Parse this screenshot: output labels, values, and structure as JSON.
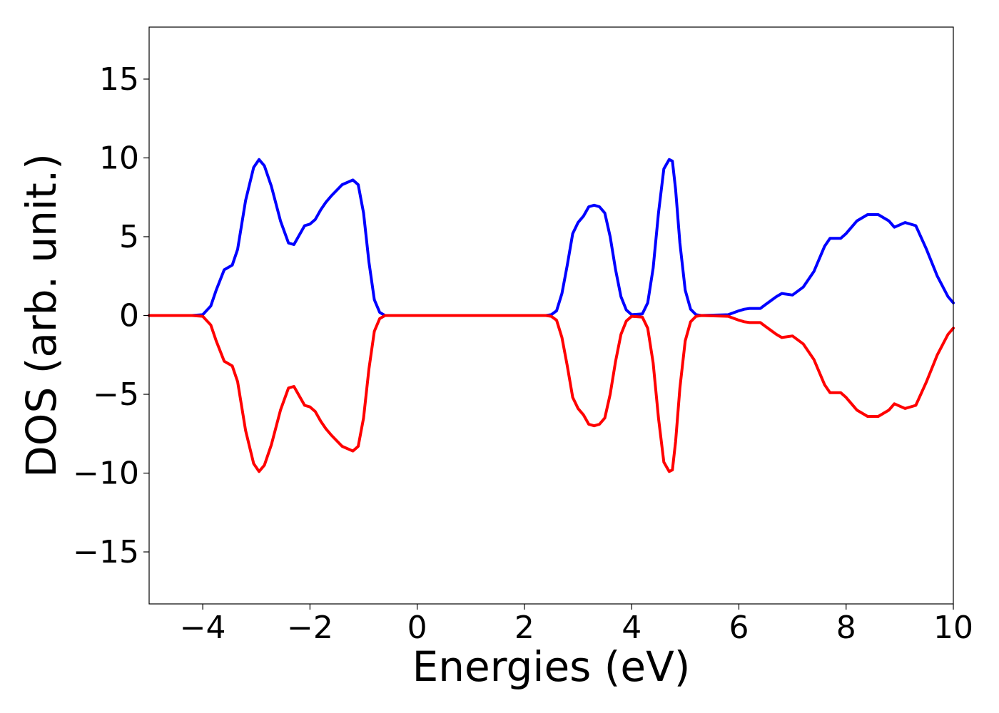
{
  "chart_data": {
    "type": "line",
    "title": "",
    "xlabel": "Energies (eV)",
    "ylabel": "DOS (arb. unit.)",
    "xlim": [
      -5,
      10
    ],
    "ylim": [
      -18.3,
      18.3
    ],
    "xticks": [
      -4,
      -2,
      0,
      2,
      4,
      6,
      8,
      10
    ],
    "xtick_labels": [
      "−4",
      "−2",
      "0",
      "2",
      "4",
      "6",
      "8",
      "10"
    ],
    "yticks": [
      -15,
      -10,
      -5,
      0,
      5,
      10,
      15
    ],
    "ytick_labels": [
      "−15",
      "−10",
      "−5",
      "0",
      "5",
      "10",
      "15"
    ],
    "grid": false,
    "legend": "none",
    "series": [
      {
        "color": "#0000ff",
        "x": [
          -5,
          -4.2,
          -4.0,
          -3.85,
          -3.75,
          -3.6,
          -3.45,
          -3.35,
          -3.2,
          -3.05,
          -2.95,
          -2.85,
          -2.72,
          -2.55,
          -2.4,
          -2.3,
          -2.2,
          -2.1,
          -2.0,
          -1.9,
          -1.8,
          -1.7,
          -1.6,
          -1.4,
          -1.2,
          -1.1,
          -1.0,
          -0.9,
          -0.8,
          -0.7,
          -0.6,
          -0.4,
          2.4,
          2.5,
          2.6,
          2.7,
          2.8,
          2.9,
          3.0,
          3.1,
          3.2,
          3.3,
          3.4,
          3.5,
          3.6,
          3.7,
          3.8,
          3.9,
          4.0,
          4.2,
          4.3,
          4.4,
          4.5,
          4.6,
          4.7,
          4.76,
          4.82,
          4.9,
          5.0,
          5.1,
          5.2,
          5.3,
          5.8,
          6.0,
          6.1,
          6.2,
          6.4,
          6.5,
          6.7,
          6.8,
          7.0,
          7.2,
          7.4,
          7.6,
          7.7,
          7.9,
          8.0,
          8.2,
          8.4,
          8.6,
          8.8,
          8.9,
          9.1,
          9.3,
          9.5,
          9.7,
          9.9,
          10.0
        ],
        "y": [
          0,
          0,
          0.05,
          0.6,
          1.6,
          2.9,
          3.2,
          4.2,
          7.3,
          9.4,
          9.9,
          9.5,
          8.2,
          6.0,
          4.6,
          4.5,
          5.1,
          5.7,
          5.8,
          6.1,
          6.7,
          7.2,
          7.6,
          8.3,
          8.6,
          8.3,
          6.5,
          3.4,
          1.0,
          0.2,
          0,
          0,
          0,
          0.05,
          0.3,
          1.4,
          3.2,
          5.2,
          5.9,
          6.3,
          6.9,
          7.0,
          6.9,
          6.5,
          5.0,
          2.9,
          1.2,
          0.35,
          0.05,
          0.1,
          0.8,
          3.0,
          6.5,
          9.3,
          9.9,
          9.8,
          8.0,
          4.6,
          1.6,
          0.4,
          0.05,
          0,
          0.05,
          0.3,
          0.4,
          0.45,
          0.45,
          0.7,
          1.2,
          1.4,
          1.3,
          1.8,
          2.8,
          4.4,
          4.9,
          4.9,
          5.2,
          6.0,
          6.4,
          6.4,
          6.0,
          5.6,
          5.9,
          5.7,
          4.2,
          2.5,
          1.2,
          0.8
        ]
      },
      {
        "color": "#ff0000",
        "x": [
          -5,
          -4.2,
          -4.0,
          -3.85,
          -3.75,
          -3.6,
          -3.45,
          -3.35,
          -3.2,
          -3.05,
          -2.95,
          -2.85,
          -2.72,
          -2.55,
          -2.4,
          -2.3,
          -2.2,
          -2.1,
          -2.0,
          -1.9,
          -1.8,
          -1.7,
          -1.6,
          -1.4,
          -1.2,
          -1.1,
          -1.0,
          -0.9,
          -0.8,
          -0.7,
          -0.6,
          -0.4,
          2.4,
          2.5,
          2.6,
          2.7,
          2.8,
          2.9,
          3.0,
          3.1,
          3.2,
          3.3,
          3.4,
          3.5,
          3.6,
          3.7,
          3.8,
          3.9,
          4.0,
          4.2,
          4.3,
          4.4,
          4.5,
          4.6,
          4.7,
          4.76,
          4.82,
          4.9,
          5.0,
          5.1,
          5.2,
          5.3,
          5.8,
          6.0,
          6.1,
          6.2,
          6.4,
          6.5,
          6.7,
          6.8,
          7.0,
          7.2,
          7.4,
          7.6,
          7.7,
          7.9,
          8.0,
          8.2,
          8.4,
          8.6,
          8.8,
          8.9,
          9.1,
          9.3,
          9.5,
          9.7,
          9.9,
          10.0
        ],
        "y": [
          0,
          0,
          -0.05,
          -0.6,
          -1.6,
          -2.9,
          -3.2,
          -4.2,
          -7.3,
          -9.4,
          -9.9,
          -9.5,
          -8.2,
          -6.0,
          -4.6,
          -4.5,
          -5.1,
          -5.7,
          -5.8,
          -6.1,
          -6.7,
          -7.2,
          -7.6,
          -8.3,
          -8.6,
          -8.3,
          -6.5,
          -3.4,
          -1.0,
          -0.2,
          0,
          0,
          0,
          -0.05,
          -0.3,
          -1.4,
          -3.2,
          -5.2,
          -5.9,
          -6.3,
          -6.9,
          -7.0,
          -6.9,
          -6.5,
          -5.0,
          -2.9,
          -1.2,
          -0.35,
          -0.05,
          -0.1,
          -0.8,
          -3.0,
          -6.5,
          -9.3,
          -9.9,
          -9.8,
          -8.0,
          -4.6,
          -1.6,
          -0.4,
          -0.05,
          0,
          -0.05,
          -0.3,
          -0.4,
          -0.45,
          -0.45,
          -0.7,
          -1.2,
          -1.4,
          -1.3,
          -1.8,
          -2.8,
          -4.4,
          -4.9,
          -4.9,
          -5.2,
          -6.0,
          -6.4,
          -6.4,
          -6.0,
          -5.6,
          -5.9,
          -5.7,
          -4.2,
          -2.5,
          -1.2,
          -0.8
        ]
      }
    ]
  }
}
